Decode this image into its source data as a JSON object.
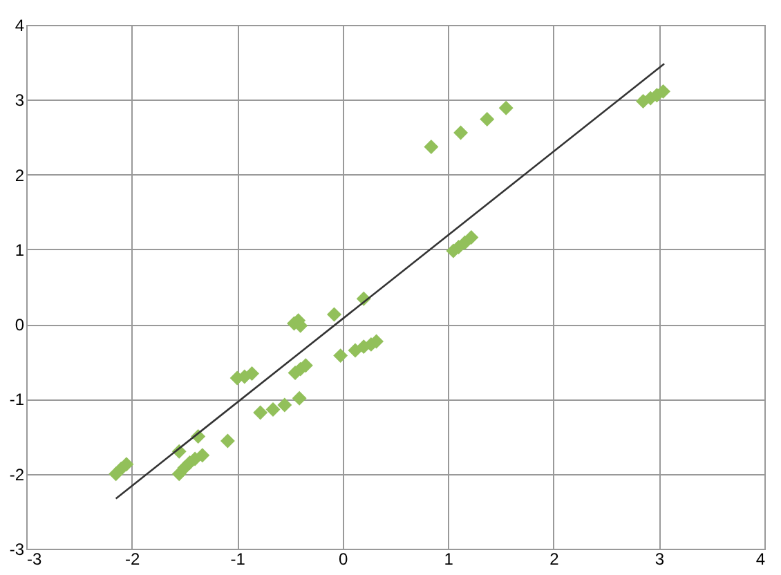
{
  "chart_data": {
    "type": "scatter",
    "xlim": [
      -3,
      4
    ],
    "ylim": [
      -3,
      4
    ],
    "xticks": [
      -3,
      -2,
      -1,
      0,
      1,
      2,
      3,
      4
    ],
    "yticks": [
      -3,
      -2,
      -1,
      0,
      1,
      2,
      3,
      4
    ],
    "grid": true,
    "series": [
      {
        "marker": "diamond",
        "color": "#92c05a",
        "x": [
          0.84,
          1.12,
          1.37,
          1.55,
          2.85,
          2.92,
          2.98,
          3.04,
          1.05,
          1.1,
          1.16,
          1.22,
          0.2,
          -0.08,
          -0.46,
          -0.42,
          -0.4,
          -0.02,
          0.12,
          0.2,
          0.27,
          0.32,
          -0.45,
          -0.4,
          -0.35,
          -1.0,
          -0.93,
          -0.86,
          -0.78,
          -0.66,
          -0.55,
          -0.41,
          -1.09,
          -1.37,
          -1.55,
          -1.5,
          -1.45,
          -1.4,
          -1.33,
          -1.55,
          -2.15,
          -2.1,
          -2.05
        ],
        "values": [
          2.37,
          2.56,
          2.74,
          2.89,
          2.98,
          3.02,
          3.06,
          3.11,
          0.98,
          1.03,
          1.09,
          1.16,
          0.34,
          0.13,
          0.01,
          0.05,
          -0.02,
          -0.42,
          -0.35,
          -0.3,
          -0.27,
          -0.23,
          -0.65,
          -0.6,
          -0.55,
          -0.72,
          -0.7,
          -0.66,
          -1.18,
          -1.14,
          -1.08,
          -0.99,
          -1.56,
          -1.5,
          -2.0,
          -1.92,
          -1.85,
          -1.8,
          -1.75,
          -1.7,
          -2.0,
          -1.93,
          -1.87
        ]
      },
      {
        "type": "line",
        "marker": "none",
        "color": "#333333",
        "x": [
          -2.15,
          3.05
        ],
        "values": [
          -2.33,
          3.48
        ]
      }
    ]
  }
}
